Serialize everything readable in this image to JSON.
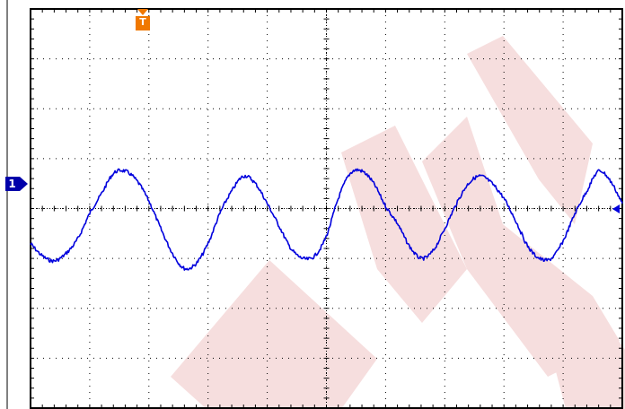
{
  "screen": {
    "divisions_x": 10,
    "divisions_y": 8,
    "grid_color": "#000000",
    "trace_color": "#0000dd",
    "trigger_color": "#f07800",
    "watermark_color": "#f2d2d2"
  },
  "channel1": {
    "marker_label": "1",
    "marker_icon": "channel-1-ground-arrow"
  },
  "trigger": {
    "marker_label": "T",
    "marker_icon": "trigger-position-marker"
  },
  "trigger_level": {
    "marker_icon": "trigger-level-arrow"
  },
  "chart_data": {
    "type": "line",
    "title": "",
    "xlabel": "",
    "ylabel": "",
    "xlim": [
      0,
      10
    ],
    "ylim": [
      -4,
      4
    ],
    "grid": true,
    "series": [
      {
        "x": [
          0.0,
          0.2,
          0.4,
          0.6,
          0.8,
          1.0,
          1.2,
          1.4,
          1.6,
          1.8,
          2.0,
          2.2,
          2.4,
          2.6,
          2.8,
          3.0,
          3.2,
          3.4,
          3.6,
          3.8,
          4.0,
          4.2,
          4.4,
          4.6,
          4.8,
          5.0,
          5.2,
          5.4,
          5.6,
          5.8,
          6.0,
          6.2,
          6.4,
          6.6,
          6.8,
          7.0,
          7.2,
          7.4,
          7.6,
          7.8,
          8.0,
          8.2,
          8.4,
          8.6,
          8.8,
          9.0,
          9.2,
          9.4,
          9.6,
          9.8,
          10.0
        ],
        "values": [
          -0.7,
          -0.95,
          -1.05,
          -0.9,
          -0.6,
          -0.1,
          0.3,
          0.7,
          0.75,
          0.55,
          0.15,
          -0.4,
          -0.9,
          -1.2,
          -1.1,
          -0.7,
          -0.1,
          0.35,
          0.65,
          0.5,
          0.1,
          -0.35,
          -0.8,
          -1.0,
          -0.95,
          -0.55,
          0.2,
          0.7,
          0.75,
          0.5,
          0.05,
          -0.3,
          -0.75,
          -1.0,
          -0.85,
          -0.4,
          0.1,
          0.5,
          0.65,
          0.5,
          0.2,
          -0.25,
          -0.75,
          -1.0,
          -1.0,
          -0.65,
          -0.1,
          0.35,
          0.75,
          0.55,
          0.1
        ]
      }
    ]
  }
}
